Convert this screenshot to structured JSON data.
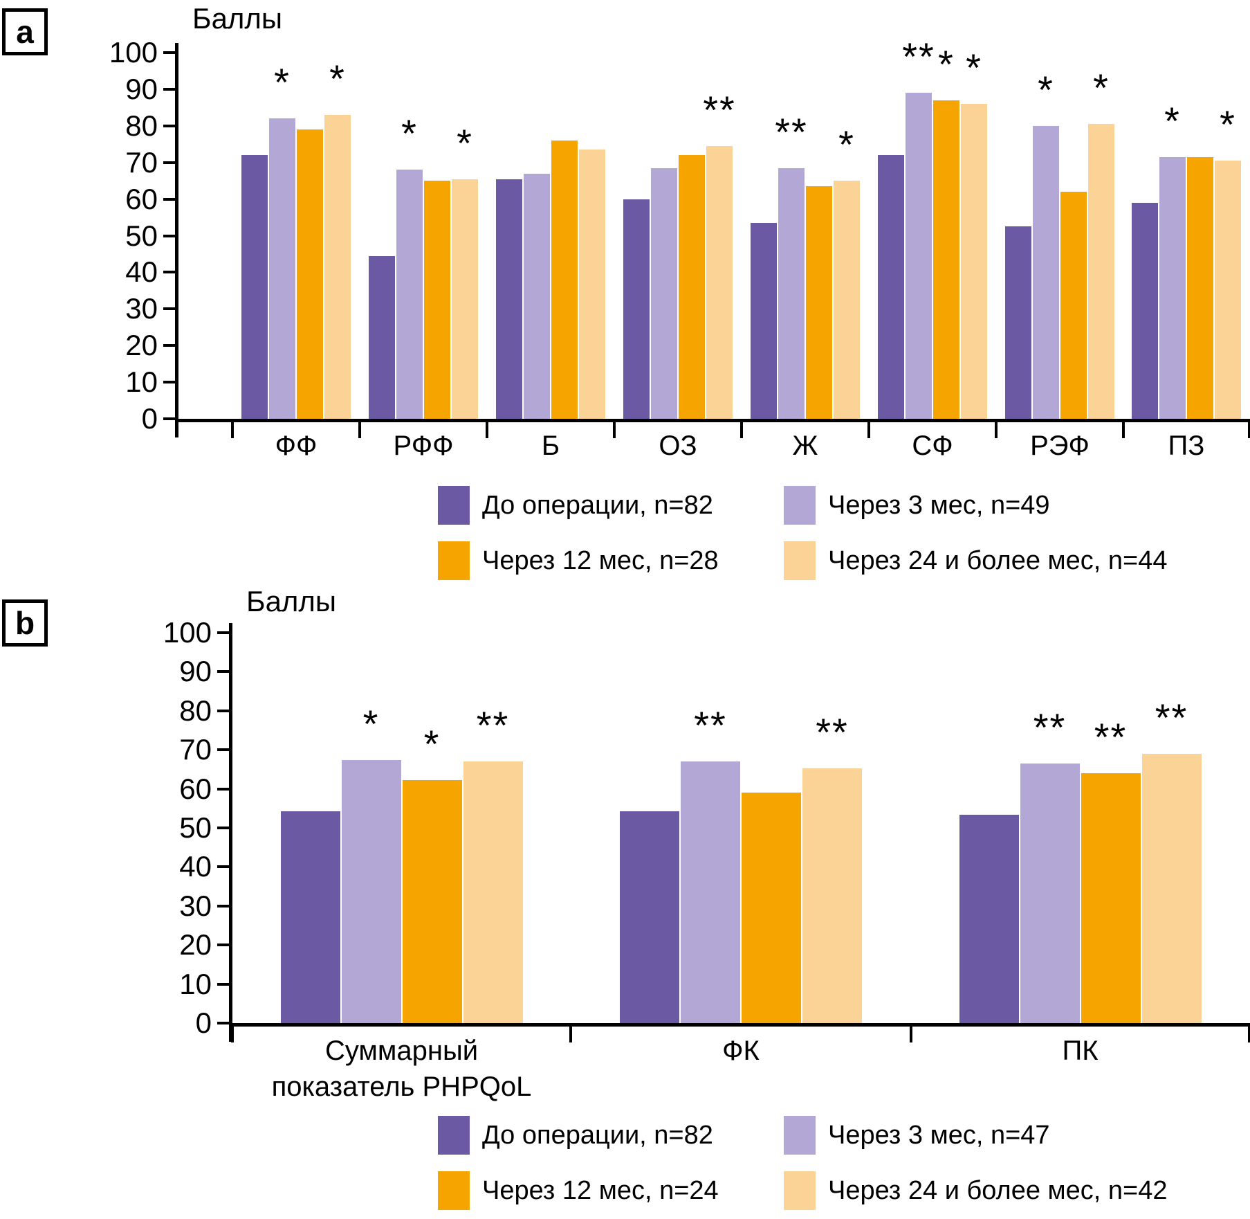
{
  "figure": {
    "panels": [
      {
        "label": "a",
        "y_axis_title": "Баллы"
      },
      {
        "label": "b",
        "y_axis_title": "Баллы"
      }
    ]
  },
  "chart_data": [
    {
      "type": "bar",
      "title": "Баллы",
      "ylabel": "Баллы",
      "xlabel": "",
      "ylim": [
        0,
        100
      ],
      "ytick_step": 10,
      "grid": false,
      "legend_position": "bottom",
      "categories": [
        "ФФ",
        "РФФ",
        "Б",
        "ОЗ",
        "Ж",
        "СФ",
        "РЭФ",
        "ПЗ"
      ],
      "series": [
        {
          "name": "До операции, n=82",
          "color": "#6C59A4",
          "values": [
            72,
            44.5,
            65.5,
            60,
            53.5,
            72,
            52.5,
            59
          ]
        },
        {
          "name": "Через 3 мес, n=49",
          "color": "#B2A7D5",
          "values": [
            82,
            68,
            67,
            68.5,
            68.5,
            89,
            80,
            71.5
          ]
        },
        {
          "name": "Через 12 мес, n=28",
          "color": "#F6A400",
          "values": [
            79,
            65,
            76,
            72,
            63.5,
            87,
            62,
            71.5
          ]
        },
        {
          "name": "Через 24 и более мес, n=44",
          "color": "#FCD396",
          "values": [
            83,
            65.5,
            73.5,
            74.5,
            65,
            86,
            80.5,
            70.5
          ]
        }
      ],
      "significance_stars": [
        [
          "",
          "*",
          "",
          "*"
        ],
        [
          "",
          "*",
          "",
          "*"
        ],
        [
          "",
          "",
          "",
          ""
        ],
        [
          "",
          "",
          "",
          "**"
        ],
        [
          "",
          "**",
          "",
          "*"
        ],
        [
          "",
          "**",
          "*",
          "*"
        ],
        [
          "",
          "*",
          "",
          "*"
        ],
        [
          "",
          "*",
          "",
          "*"
        ]
      ],
      "legend_rows": [
        [
          0,
          1
        ],
        [
          2,
          3
        ]
      ]
    },
    {
      "type": "bar",
      "title": "Баллы",
      "ylabel": "Баллы",
      "xlabel": "",
      "ylim": [
        0,
        100
      ],
      "ytick_step": 10,
      "grid": false,
      "legend_position": "bottom",
      "categories": [
        "Суммарный\nпоказатель PHPQoL",
        "ФК",
        "ПК"
      ],
      "series": [
        {
          "name": "До операции, n=82",
          "color": "#6C59A4",
          "values": [
            54.3,
            54.3,
            53.3
          ]
        },
        {
          "name": "Через 3 мес, n=47",
          "color": "#B2A7D5",
          "values": [
            67.3,
            67,
            66.5
          ]
        },
        {
          "name": "Через 12 мес, n=24",
          "color": "#F6A400",
          "values": [
            62.3,
            59,
            64
          ]
        },
        {
          "name": "Через 24 и более мес, n=42",
          "color": "#FCD396",
          "values": [
            67,
            65.3,
            69
          ]
        }
      ],
      "significance_stars": [
        [
          "",
          "*",
          "*",
          "**"
        ],
        [
          "",
          "**",
          "",
          "**"
        ],
        [
          "",
          "**",
          "**",
          "**"
        ]
      ],
      "legend_rows": [
        [
          0,
          1
        ],
        [
          2,
          3
        ]
      ]
    }
  ]
}
